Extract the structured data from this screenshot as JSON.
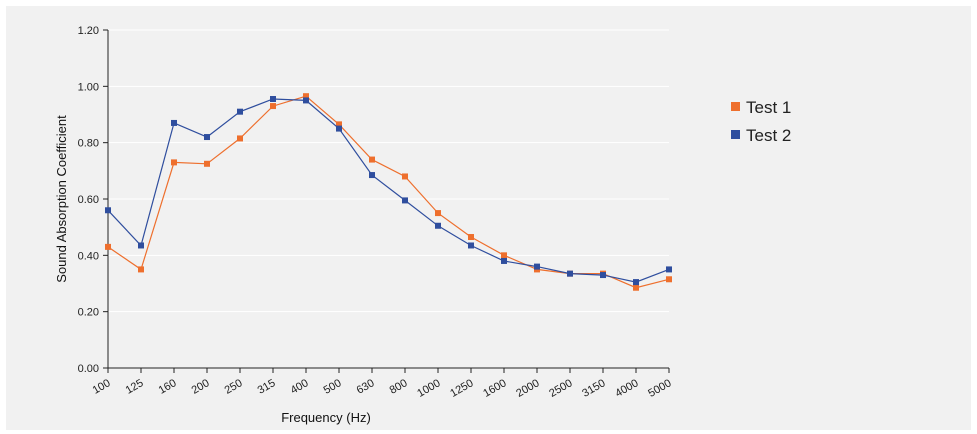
{
  "chart_data": {
    "type": "line",
    "title": "",
    "xlabel": "Frequency (Hz)",
    "ylabel": "Sound Absorption Coefficient",
    "categories": [
      "100",
      "125",
      "160",
      "200",
      "250",
      "315",
      "400",
      "500",
      "630",
      "800",
      "1000",
      "1250",
      "1600",
      "2000",
      "2500",
      "3150",
      "4000",
      "5000"
    ],
    "yticks": [
      "0.00",
      "0.20",
      "0.40",
      "0.60",
      "0.80",
      "1.00",
      "1.20"
    ],
    "ylim": [
      0,
      1.2
    ],
    "grid": true,
    "legend_position": "right",
    "series": [
      {
        "name": "Test 1",
        "color": "#ee6f2d",
        "values": [
          0.43,
          0.35,
          0.73,
          0.725,
          0.815,
          0.93,
          0.965,
          0.865,
          0.74,
          0.68,
          0.55,
          0.465,
          0.4,
          0.35,
          0.335,
          0.335,
          0.285,
          0.315
        ]
      },
      {
        "name": "Test 2",
        "color": "#2f4e9e",
        "values": [
          0.56,
          0.435,
          0.87,
          0.82,
          0.91,
          0.955,
          0.95,
          0.85,
          0.685,
          0.595,
          0.505,
          0.435,
          0.38,
          0.36,
          0.335,
          0.33,
          0.305,
          0.35
        ]
      }
    ]
  }
}
